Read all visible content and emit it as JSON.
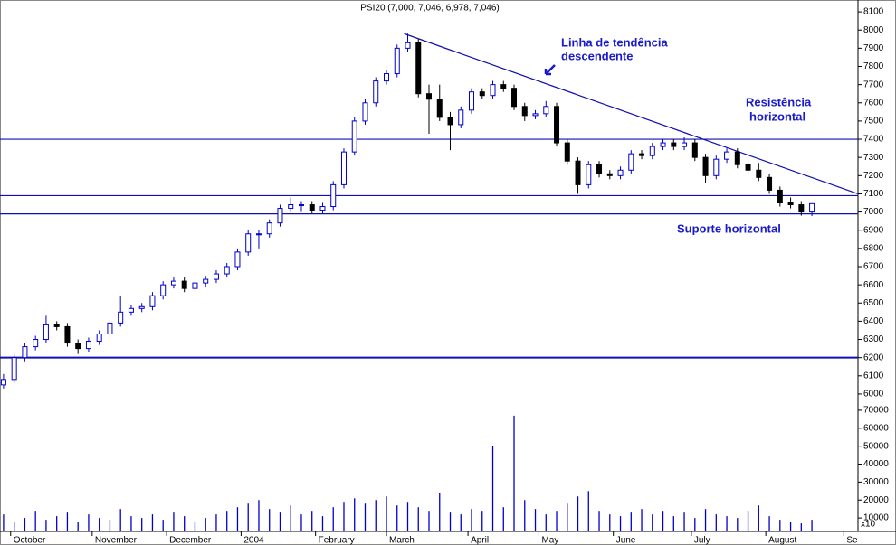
{
  "chart_data": {
    "type": "candlestick",
    "title": "PSI20 (7,000, 7,046, 6,978, 7,046)",
    "x": [
      0,
      3,
      6,
      9,
      12,
      15,
      18,
      21,
      24,
      27,
      30,
      33,
      36,
      39,
      42,
      45,
      48,
      51,
      54,
      57,
      60,
      63,
      66,
      69,
      72,
      75,
      78,
      81,
      84,
      87,
      90,
      93,
      96,
      99,
      102,
      105,
      108,
      111,
      114,
      117,
      120,
      123,
      126,
      129,
      132,
      135,
      138,
      141,
      144,
      147,
      150,
      153,
      156,
      159,
      162,
      165,
      168,
      171,
      174,
      177,
      180,
      183,
      186,
      189,
      192,
      195,
      198,
      201,
      204,
      207,
      210,
      213,
      216,
      219,
      222,
      225,
      228
    ],
    "open": [
      6050,
      6080,
      6200,
      6260,
      6300,
      6380,
      6370,
      6280,
      6250,
      6290,
      6330,
      6390,
      6450,
      6470,
      6480,
      6540,
      6600,
      6620,
      6580,
      6610,
      6630,
      6660,
      6700,
      6780,
      6880,
      6880,
      6940,
      7020,
      7040,
      7040,
      7010,
      7030,
      7150,
      7330,
      7500,
      7600,
      7720,
      7760,
      7900,
      7930,
      7650,
      7620,
      7520,
      7480,
      7560,
      7660,
      7640,
      7700,
      7680,
      7580,
      7530,
      7540,
      7580,
      7380,
      7280,
      7150,
      7260,
      7210,
      7200,
      7230,
      7320,
      7310,
      7360,
      7380,
      7360,
      7380,
      7300,
      7200,
      7290,
      7330,
      7260,
      7230,
      7190,
      7120,
      7050,
      7040,
      7000
    ],
    "high": [
      6110,
      6220,
      6280,
      6320,
      6430,
      6400,
      6390,
      6300,
      6310,
      6350,
      6410,
      6540,
      6490,
      6500,
      6560,
      6620,
      6640,
      6640,
      6630,
      6650,
      6680,
      6720,
      6800,
      6900,
      6900,
      6960,
      7040,
      7080,
      7060,
      7060,
      7050,
      7170,
      7350,
      7520,
      7620,
      7740,
      7780,
      7920,
      7980,
      7950,
      7700,
      7700,
      7550,
      7580,
      7680,
      7680,
      7720,
      7720,
      7700,
      7600,
      7560,
      7610,
      7600,
      7400,
      7300,
      7280,
      7280,
      7230,
      7250,
      7340,
      7340,
      7380,
      7400,
      7400,
      7410,
      7400,
      7320,
      7310,
      7350,
      7350,
      7280,
      7270,
      7210,
      7140,
      7080,
      7060,
      7046
    ],
    "low": [
      6030,
      6060,
      6180,
      6240,
      6280,
      6350,
      6260,
      6220,
      6230,
      6270,
      6310,
      6370,
      6430,
      6450,
      6460,
      6520,
      6580,
      6560,
      6560,
      6590,
      6610,
      6640,
      6680,
      6760,
      6800,
      6860,
      6920,
      7000,
      7000,
      6990,
      6990,
      7010,
      7130,
      7310,
      7480,
      7580,
      7700,
      7740,
      7880,
      7630,
      7430,
      7500,
      7340,
      7460,
      7540,
      7620,
      7620,
      7660,
      7560,
      7500,
      7510,
      7520,
      7360,
      7260,
      7100,
      7130,
      7190,
      7180,
      7180,
      7210,
      7290,
      7290,
      7340,
      7340,
      7340,
      7280,
      7160,
      7180,
      7270,
      7240,
      7210,
      7170,
      7100,
      7030,
      7020,
      6980,
      6978
    ],
    "close": [
      6080,
      6200,
      6260,
      6300,
      6380,
      6370,
      6280,
      6250,
      6290,
      6330,
      6390,
      6450,
      6470,
      6480,
      6540,
      6600,
      6620,
      6580,
      6610,
      6630,
      6660,
      6700,
      6780,
      6880,
      6880,
      6940,
      7020,
      7040,
      7040,
      7010,
      7030,
      7150,
      7330,
      7500,
      7600,
      7720,
      7760,
      7900,
      7930,
      7650,
      7620,
      7520,
      7480,
      7560,
      7660,
      7640,
      7700,
      7680,
      7580,
      7530,
      7540,
      7580,
      7380,
      7280,
      7150,
      7260,
      7210,
      7200,
      7230,
      7320,
      7310,
      7360,
      7380,
      7360,
      7380,
      7300,
      7200,
      7290,
      7330,
      7260,
      7230,
      7190,
      7120,
      7050,
      7040,
      7000,
      7046
    ],
    "volume": [
      12000,
      8000,
      10000,
      14000,
      9000,
      11000,
      13000,
      8000,
      12000,
      10000,
      9000,
      15000,
      11000,
      10000,
      12000,
      9000,
      13000,
      11000,
      8000,
      10000,
      12000,
      14000,
      16000,
      18000,
      20000,
      15000,
      13000,
      17000,
      12000,
      14000,
      11000,
      16000,
      19000,
      21000,
      18000,
      20000,
      22000,
      17000,
      19000,
      16000,
      14000,
      24000,
      13000,
      12000,
      15000,
      14000,
      50000,
      16000,
      67000,
      20000,
      15000,
      12000,
      14000,
      18000,
      22000,
      25000,
      14000,
      12000,
      11000,
      13000,
      15000,
      12000,
      14000,
      11000,
      13000,
      10000,
      15000,
      12000,
      11000,
      10000,
      14000,
      17000,
      11000,
      9000,
      8000,
      7000,
      9000
    ],
    "up_color": "#0000cc",
    "down_color": "#000000",
    "line_color": "#1010b0",
    "xlim": [
      -1,
      241
    ],
    "xticks": [
      {
        "value": 2,
        "label": "October"
      },
      {
        "value": 25,
        "label": "November"
      },
      {
        "value": 46,
        "label": "December"
      },
      {
        "value": 67,
        "label": "2004"
      },
      {
        "value": 88,
        "label": "February"
      },
      {
        "value": 108,
        "label": "March"
      },
      {
        "value": 131,
        "label": "April"
      },
      {
        "value": 151,
        "label": "May"
      },
      {
        "value": 172,
        "label": "June"
      },
      {
        "value": 194,
        "label": "July"
      },
      {
        "value": 215,
        "label": "August"
      },
      {
        "value": 237,
        "label": "Se"
      }
    ],
    "ylim": [
      5955,
      8165
    ],
    "yticks": [
      6000,
      6100,
      6200,
      6300,
      6400,
      6500,
      6600,
      6700,
      6800,
      6900,
      7000,
      7100,
      7200,
      7300,
      7400,
      7500,
      7600,
      7700,
      7800,
      7900,
      8000,
      8100
    ],
    "volume_ylim": [
      2500,
      75000
    ],
    "volume_yticks": [
      10000,
      20000,
      30000,
      40000,
      50000,
      60000,
      70000
    ],
    "volume_axis_label": "x10",
    "hlines": [
      7400,
      7090,
      6990,
      6200
    ],
    "trendline": {
      "x": [
        113,
        241
      ],
      "y": [
        7980,
        7100
      ]
    },
    "annotations": [
      "Linha de tendência",
      "descendente",
      "Resistência",
      "horizontal",
      "Suporte horizontal"
    ]
  }
}
